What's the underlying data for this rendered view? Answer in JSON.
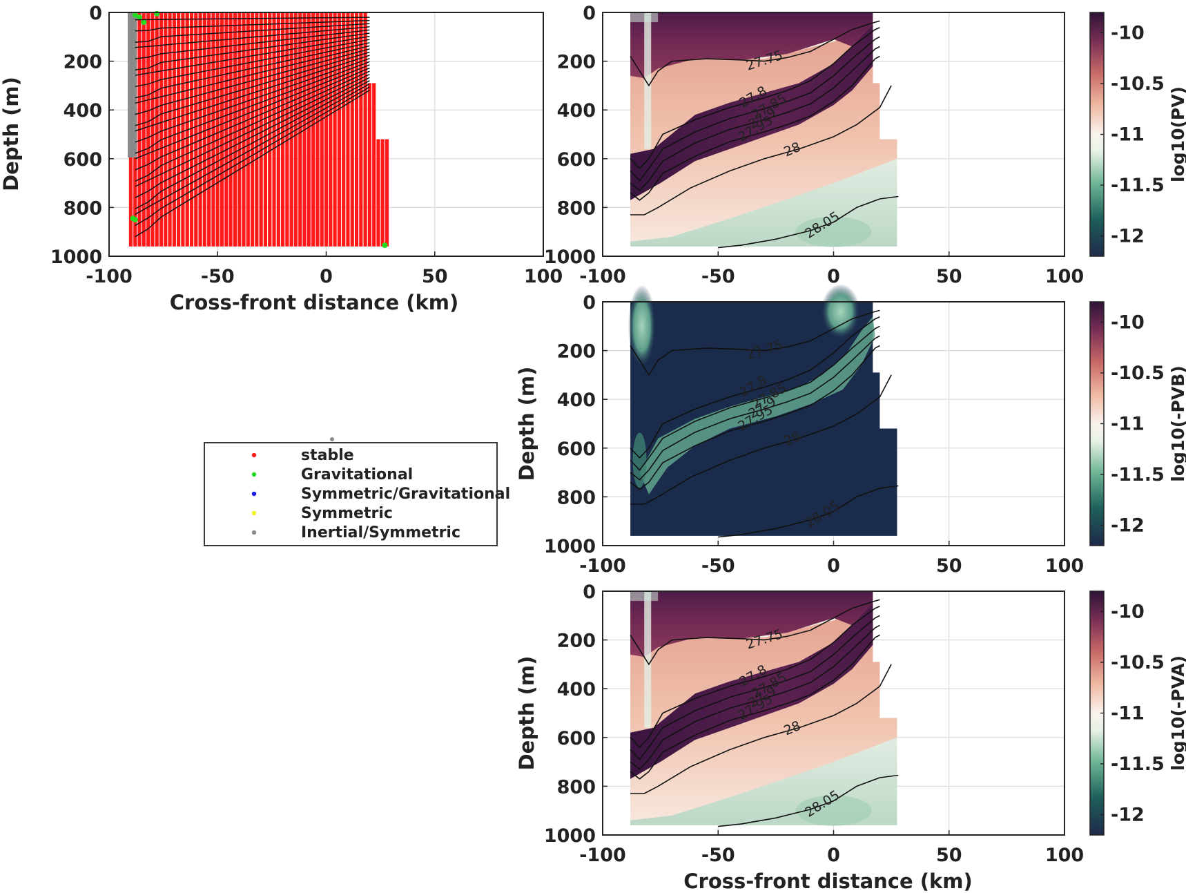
{
  "figure": {
    "panels": [
      {
        "id": "stability",
        "xlabel": "Cross-front distance (km)",
        "ylabel": "Depth (m)"
      },
      {
        "id": "pv",
        "xlabel": "",
        "ylabel": "",
        "colorbar_label": "log10(PV)"
      },
      {
        "id": "pvb",
        "xlabel": "",
        "ylabel": "Depth (m)",
        "colorbar_label": "log10(-PVB)"
      },
      {
        "id": "pva",
        "xlabel": "Cross-front distance (km)",
        "ylabel": "Depth (m)",
        "colorbar_label": "log10(-PVA)"
      }
    ],
    "x_ticks": [
      "-100",
      "-50",
      "0",
      "50",
      "100"
    ],
    "y_ticks": [
      "0",
      "200",
      "400",
      "600",
      "800",
      "1000"
    ],
    "cb_ticks": [
      "-10",
      "-10.5",
      "-11",
      "-11.5",
      "-12"
    ],
    "legend": [
      {
        "label": "stable",
        "color": "#ff1a1a"
      },
      {
        "label": "Gravitational",
        "color": "#22dd22"
      },
      {
        "label": "Symmetric/Gravitational",
        "color": "#1a1aee"
      },
      {
        "label": "Symmetric",
        "color": "#f2ee22"
      },
      {
        "label": "Inertial/Symmetric",
        "color": "#8a8a8a"
      }
    ]
  },
  "chart_data": [
    {
      "type": "scatter",
      "panel": "stability",
      "xlabel": "Cross-front distance (km)",
      "ylabel": "Depth (m)",
      "xlim": [
        -100,
        100
      ],
      "ylim": [
        1000,
        0
      ],
      "y_reversed": true,
      "grid": true,
      "legend_position": "below-left",
      "series": [
        {
          "name": "stable",
          "color": "#ff1a1a",
          "station_range_km": [
            -90,
            28
          ],
          "depth_range_m": [
            0,
            960
          ]
        },
        {
          "name": "Gravitational",
          "color": "#22dd22",
          "points": [
            [
              -88,
              10
            ],
            [
              -86,
              20
            ],
            [
              -84,
              40
            ],
            [
              -78,
              5
            ],
            [
              -89,
              845
            ],
            [
              -88,
              850
            ],
            [
              27,
              955
            ]
          ]
        },
        {
          "name": "Symmetric/Gravitational",
          "color": "#1a1aee",
          "points": []
        },
        {
          "name": "Symmetric",
          "color": "#f2ee22",
          "points": []
        },
        {
          "name": "Inertial/Symmetric",
          "color": "#8a8a8a",
          "points": [
            [
              -81,
              0
            ],
            [
              -81,
              100
            ],
            [
              -81,
              200
            ],
            [
              -81,
              300
            ],
            [
              -81,
              400
            ],
            [
              -81,
              500
            ],
            [
              -81,
              580
            ],
            [
              -79,
              570
            ]
          ]
        }
      ],
      "contours": "density isopycnals"
    },
    {
      "type": "heatmap",
      "panel": "pv",
      "colorbar_label": "log10(PV)",
      "xlim": [
        -100,
        100
      ],
      "ylim": [
        1000,
        0
      ],
      "clim": [
        -12.2,
        -9.8
      ],
      "colormap": "dark-green to white to dark-purple",
      "contour_labels": [
        "27.75",
        "27.8",
        "27.85",
        "27.9",
        "27.95",
        "28",
        "28.05"
      ]
    },
    {
      "type": "heatmap",
      "panel": "pvb",
      "ylabel": "Depth (m)",
      "colorbar_label": "log10(-PVB)",
      "xlim": [
        -100,
        100
      ],
      "ylim": [
        1000,
        0
      ],
      "clim": [
        -12.2,
        -9.8
      ],
      "colormap": "dark-green to white to dark-purple",
      "contour_labels": [
        "27.75",
        "27.8",
        "27.85",
        "27.9",
        "27.95",
        "28",
        "28.05"
      ]
    },
    {
      "type": "heatmap",
      "panel": "pva",
      "xlabel": "Cross-front distance (km)",
      "ylabel": "Depth (m)",
      "colorbar_label": "log10(-PVA)",
      "xlim": [
        -100,
        100
      ],
      "ylim": [
        1000,
        0
      ],
      "clim": [
        -12.2,
        -9.8
      ],
      "colormap": "dark-green to white to dark-purple",
      "contour_labels": [
        "27.75",
        "27.8",
        "27.85",
        "27.9",
        "27.95",
        "28",
        "28.05"
      ]
    }
  ]
}
